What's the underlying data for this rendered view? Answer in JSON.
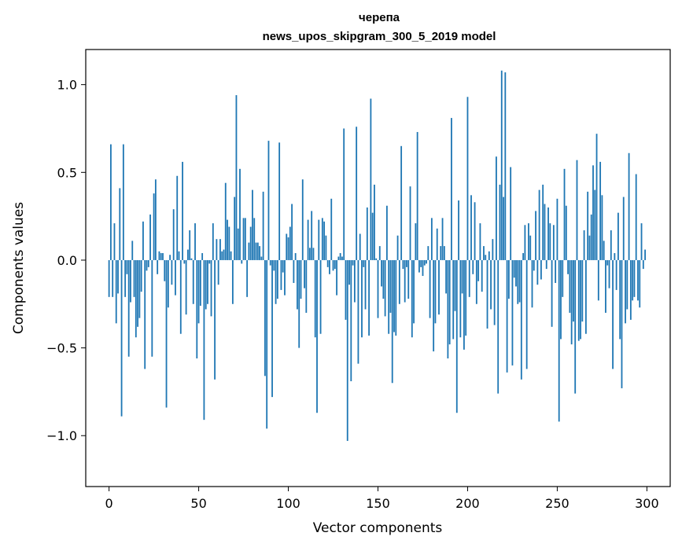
{
  "chart_data": {
    "type": "bar",
    "title": "черепа",
    "subtitle": "news_upos_skipgram_300_5_2019 model",
    "xlabel": "Vector components",
    "ylabel": "Components values",
    "xlim": [
      -13,
      313
    ],
    "ylim": [
      -1.29,
      1.2
    ],
    "xticks": [
      0,
      50,
      100,
      150,
      200,
      250,
      300
    ],
    "xtick_labels": [
      "0",
      "50",
      "100",
      "150",
      "200",
      "250",
      "300"
    ],
    "yticks": [
      -1.0,
      -0.5,
      0.0,
      0.5,
      1.0
    ],
    "ytick_labels": [
      "−1.0",
      "−0.5",
      "0.0",
      "0.5",
      "1.0"
    ],
    "grid": false,
    "bar_color": "#1f77b4",
    "values": [
      -0.21,
      0.66,
      -0.21,
      0.21,
      -0.36,
      -0.19,
      0.41,
      -0.89,
      0.66,
      -0.21,
      -0.08,
      -0.55,
      -0.24,
      0.11,
      -0.21,
      -0.44,
      -0.38,
      -0.33,
      -0.18,
      0.22,
      -0.62,
      -0.06,
      -0.04,
      0.26,
      -0.55,
      0.38,
      0.46,
      -0.08,
      0.05,
      0.04,
      0.04,
      -0.12,
      -0.84,
      -0.27,
      0.03,
      -0.14,
      0.29,
      -0.2,
      0.48,
      0.05,
      -0.42,
      0.56,
      -0.02,
      -0.31,
      0.06,
      0.17,
      0.01,
      -0.25,
      0.21,
      -0.56,
      -0.36,
      -0.26,
      0.04,
      -0.91,
      -0.28,
      -0.25,
      -0.02,
      -0.32,
      0.21,
      -0.68,
      0.12,
      -0.14,
      0.12,
      0.05,
      0.06,
      0.44,
      0.23,
      0.19,
      0.05,
      -0.25,
      0.36,
      0.94,
      0.18,
      0.52,
      -0.02,
      0.24,
      0.24,
      -0.21,
      0.1,
      0.19,
      0.4,
      0.24,
      0.1,
      0.1,
      0.08,
      0.02,
      0.39,
      -0.66,
      -0.96,
      0.68,
      -0.03,
      -0.78,
      -0.06,
      -0.25,
      -0.22,
      0.67,
      -0.17,
      -0.07,
      -0.2,
      0.15,
      0.13,
      0.19,
      0.32,
      -0.13,
      0.04,
      -0.28,
      -0.5,
      -0.22,
      0.46,
      -0.16,
      -0.3,
      0.23,
      0.07,
      0.28,
      0.07,
      -0.44,
      -0.87,
      0.23,
      -0.42,
      0.24,
      0.22,
      0.14,
      -0.04,
      -0.08,
      0.35,
      -0.06,
      -0.05,
      -0.2,
      0.02,
      0.04,
      0.02,
      0.75,
      -0.34,
      -1.03,
      -0.14,
      -0.69,
      -0.03,
      -0.24,
      0.76,
      -0.59,
      0.15,
      -0.44,
      -0.04,
      -0.28,
      0.3,
      -0.43,
      0.92,
      0.27,
      0.43,
      0.01,
      -0.33,
      0.08,
      -0.15,
      -0.22,
      -0.32,
      0.31,
      -0.42,
      -0.3,
      -0.7,
      -0.41,
      -0.43,
      0.14,
      -0.25,
      0.65,
      -0.05,
      -0.24,
      -0.04,
      -0.22,
      0.42,
      -0.44,
      -0.36,
      0.21,
      0.73,
      -0.07,
      -0.04,
      -0.09,
      -0.03,
      -0.02,
      0.08,
      -0.33,
      0.24,
      -0.52,
      -0.36,
      0.18,
      -0.31,
      0.08,
      0.24,
      0.08,
      -0.19,
      -0.56,
      -0.48,
      0.81,
      -0.45,
      -0.29,
      -0.87,
      0.34,
      -0.44,
      -0.19,
      -0.51,
      -0.43,
      0.93,
      -0.21,
      0.37,
      -0.08,
      0.33,
      -0.25,
      -0.12,
      0.21,
      -0.18,
      0.08,
      0.03,
      -0.39,
      0.05,
      -0.28,
      0.12,
      -0.37,
      0.59,
      -0.76,
      0.43,
      1.08,
      0.36,
      1.07,
      -0.64,
      -0.22,
      0.53,
      -0.6,
      -0.1,
      -0.15,
      -0.25,
      -0.24,
      -0.68,
      0.04,
      0.2,
      -0.62,
      0.21,
      0.14,
      -0.27,
      -0.06,
      0.28,
      -0.14,
      0.4,
      -0.11,
      0.43,
      0.32,
      -0.05,
      0.3,
      0.21,
      -0.38,
      0.2,
      -0.13,
      0.35,
      -0.92,
      -0.45,
      -0.21,
      0.52,
      0.31,
      -0.08,
      -0.3,
      -0.48,
      -0.35,
      -0.76,
      0.57,
      -0.46,
      -0.45,
      -0.35,
      0.17,
      -0.42,
      0.39,
      0.14,
      0.26,
      0.54,
      0.4,
      0.72,
      -0.23,
      0.56,
      0.37,
      0.11,
      -0.3,
      -0.03,
      -0.16,
      0.17,
      -0.62,
      0.04,
      -0.17,
      0.27,
      -0.45,
      -0.73,
      0.36,
      -0.36,
      -0.28,
      0.61,
      -0.34,
      -0.23,
      -0.21,
      0.49,
      -0.23,
      -0.27,
      0.21,
      -0.05,
      0.06
    ]
  }
}
